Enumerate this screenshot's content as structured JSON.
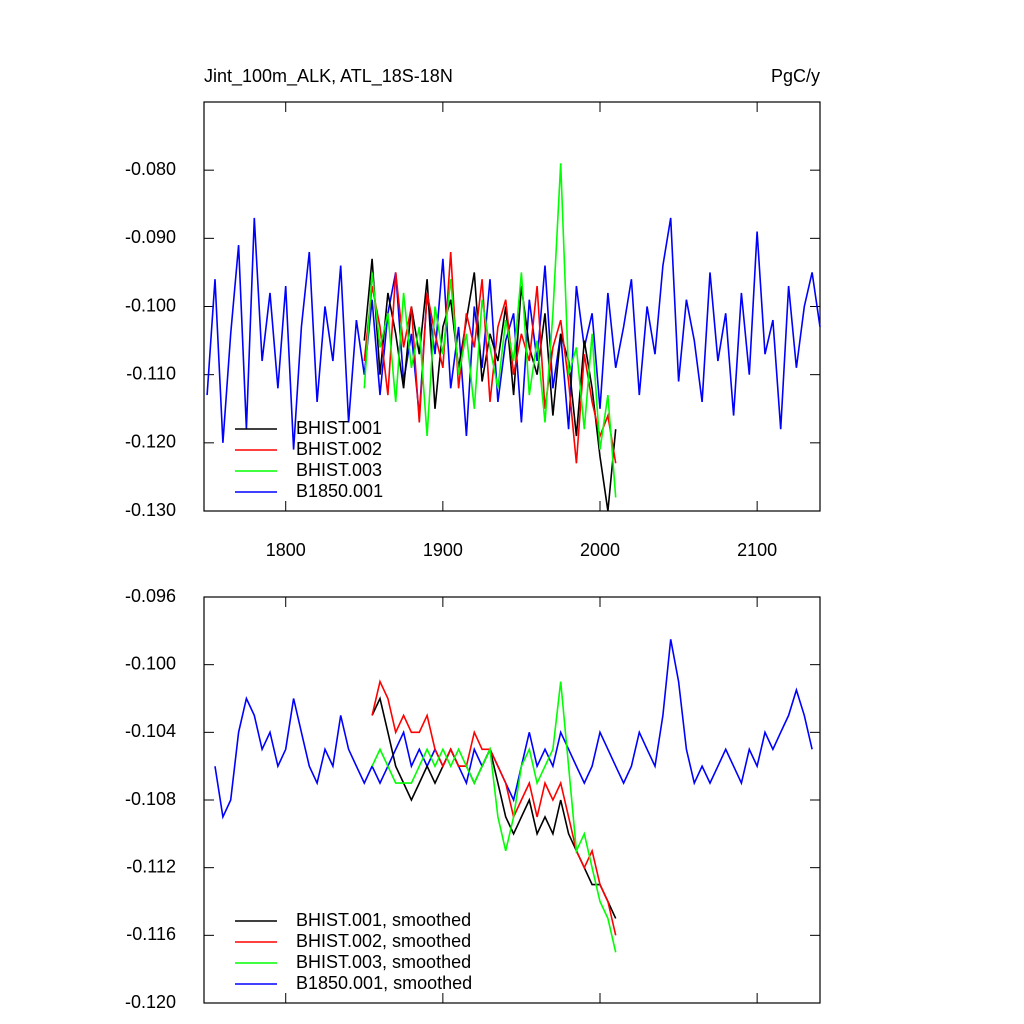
{
  "chart_data": [
    {
      "type": "line",
      "title": "Jint_100m_ALK, ATL_18S-18N",
      "units": "PgC/y",
      "xlim": [
        1748,
        2140
      ],
      "xticks": [
        1800,
        1900,
        2000,
        2100
      ],
      "ylim": [
        -0.13,
        -0.07
      ],
      "yticks": [
        {
          "value": -0.13,
          "label": "-0.130"
        },
        {
          "value": -0.12,
          "label": "-0.120"
        },
        {
          "value": -0.11,
          "label": "-0.110"
        },
        {
          "value": -0.1,
          "label": "-0.100"
        },
        {
          "value": -0.09,
          "label": "-0.090"
        },
        {
          "value": -0.08,
          "label": "-0.080"
        }
      ],
      "show_xtick_labels": true,
      "legend": "lower left",
      "series": [
        {
          "name": "B1850.001",
          "color": "#0000ff",
          "x": [
            1750,
            1755,
            1760,
            1765,
            1770,
            1775,
            1780,
            1785,
            1790,
            1795,
            1800,
            1805,
            1810,
            1815,
            1820,
            1825,
            1830,
            1835,
            1840,
            1845,
            1850,
            1855,
            1860,
            1865,
            1870,
            1875,
            1880,
            1885,
            1890,
            1895,
            1900,
            1905,
            1910,
            1915,
            1920,
            1925,
            1930,
            1935,
            1940,
            1945,
            1950,
            1955,
            1960,
            1965,
            1970,
            1975,
            1980,
            1985,
            1990,
            1995,
            2000,
            2005,
            2010,
            2015,
            2020,
            2025,
            2030,
            2035,
            2040,
            2045,
            2050,
            2055,
            2060,
            2065,
            2070,
            2075,
            2080,
            2085,
            2090,
            2095,
            2100,
            2105,
            2110,
            2115,
            2120,
            2125,
            2130,
            2135,
            2140
          ],
          "values": [
            -0.113,
            -0.096,
            -0.12,
            -0.104,
            -0.091,
            -0.118,
            -0.087,
            -0.108,
            -0.098,
            -0.112,
            -0.097,
            -0.121,
            -0.103,
            -0.092,
            -0.114,
            -0.1,
            -0.108,
            -0.094,
            -0.117,
            -0.102,
            -0.11,
            -0.099,
            -0.113,
            -0.101,
            -0.095,
            -0.111,
            -0.104,
            -0.116,
            -0.098,
            -0.107,
            -0.093,
            -0.112,
            -0.103,
            -0.119,
            -0.1,
            -0.109,
            -0.096,
            -0.114,
            -0.105,
            -0.101,
            -0.117,
            -0.099,
            -0.108,
            -0.094,
            -0.112,
            -0.104,
            -0.118,
            -0.097,
            -0.106,
            -0.101,
            -0.115,
            -0.098,
            -0.109,
            -0.103,
            -0.096,
            -0.113,
            -0.1,
            -0.107,
            -0.094,
            -0.087,
            -0.111,
            -0.099,
            -0.105,
            -0.114,
            -0.095,
            -0.108,
            -0.101,
            -0.116,
            -0.098,
            -0.11,
            -0.089,
            -0.107,
            -0.102,
            -0.118,
            -0.097,
            -0.109,
            -0.1,
            -0.095,
            -0.103
          ]
        },
        {
          "name": "BHIST.001",
          "color": "#000000",
          "x": [
            1850,
            1855,
            1860,
            1865,
            1870,
            1875,
            1880,
            1885,
            1890,
            1895,
            1900,
            1905,
            1910,
            1915,
            1920,
            1925,
            1930,
            1935,
            1940,
            1945,
            1950,
            1955,
            1960,
            1965,
            1970,
            1975,
            1980,
            1985,
            1990,
            1995,
            2000,
            2005,
            2010
          ],
          "values": [
            -0.105,
            -0.093,
            -0.11,
            -0.098,
            -0.104,
            -0.112,
            -0.1,
            -0.107,
            -0.096,
            -0.115,
            -0.103,
            -0.099,
            -0.109,
            -0.102,
            -0.095,
            -0.111,
            -0.104,
            -0.108,
            -0.1,
            -0.113,
            -0.097,
            -0.106,
            -0.11,
            -0.101,
            -0.116,
            -0.104,
            -0.108,
            -0.119,
            -0.105,
            -0.112,
            -0.122,
            -0.13,
            -0.118
          ]
        },
        {
          "name": "BHIST.002",
          "color": "#ff0000",
          "x": [
            1850,
            1855,
            1860,
            1865,
            1870,
            1875,
            1880,
            1885,
            1890,
            1895,
            1900,
            1905,
            1910,
            1915,
            1920,
            1925,
            1930,
            1935,
            1940,
            1945,
            1950,
            1955,
            1960,
            1965,
            1970,
            1975,
            1980,
            1985,
            1990,
            1995,
            2000,
            2005,
            2010
          ],
          "values": [
            -0.108,
            -0.097,
            -0.103,
            -0.113,
            -0.095,
            -0.106,
            -0.1,
            -0.117,
            -0.098,
            -0.104,
            -0.109,
            -0.092,
            -0.112,
            -0.101,
            -0.106,
            -0.096,
            -0.114,
            -0.103,
            -0.099,
            -0.11,
            -0.104,
            -0.108,
            -0.097,
            -0.115,
            -0.106,
            -0.102,
            -0.111,
            -0.123,
            -0.107,
            -0.114,
            -0.119,
            -0.116,
            -0.123
          ]
        },
        {
          "name": "BHIST.003",
          "color": "#00ff00",
          "x": [
            1850,
            1855,
            1860,
            1865,
            1870,
            1875,
            1880,
            1885,
            1890,
            1895,
            1900,
            1905,
            1910,
            1915,
            1920,
            1925,
            1930,
            1935,
            1940,
            1945,
            1950,
            1955,
            1960,
            1965,
            1970,
            1975,
            1980,
            1985,
            1990,
            1995,
            2000,
            2005,
            2010
          ],
          "values": [
            -0.112,
            -0.095,
            -0.106,
            -0.101,
            -0.114,
            -0.098,
            -0.109,
            -0.103,
            -0.119,
            -0.1,
            -0.107,
            -0.096,
            -0.11,
            -0.104,
            -0.115,
            -0.099,
            -0.106,
            -0.112,
            -0.102,
            -0.108,
            -0.095,
            -0.113,
            -0.105,
            -0.117,
            -0.101,
            -0.079,
            -0.11,
            -0.106,
            -0.118,
            -0.104,
            -0.121,
            -0.113,
            -0.128
          ]
        }
      ],
      "legend_order": [
        "BHIST.001",
        "BHIST.002",
        "BHIST.003",
        "B1850.001"
      ]
    },
    {
      "type": "line",
      "xlim": [
        1748,
        2140
      ],
      "xticks": [
        1800,
        1900,
        2000,
        2100
      ],
      "ylim": [
        -0.12,
        -0.096
      ],
      "yticks": [
        {
          "value": -0.12,
          "label": "-0.120"
        },
        {
          "value": -0.116,
          "label": "-0.116"
        },
        {
          "value": -0.112,
          "label": "-0.112"
        },
        {
          "value": -0.108,
          "label": "-0.108"
        },
        {
          "value": -0.104,
          "label": "-0.104"
        },
        {
          "value": -0.1,
          "label": "-0.100"
        },
        {
          "value": -0.096,
          "label": "-0.096"
        }
      ],
      "show_xtick_labels": false,
      "legend": "lower left",
      "series": [
        {
          "name": "B1850.001, smoothed",
          "color": "#0000ff",
          "x": [
            1755,
            1760,
            1765,
            1770,
            1775,
            1780,
            1785,
            1790,
            1795,
            1800,
            1805,
            1810,
            1815,
            1820,
            1825,
            1830,
            1835,
            1840,
            1845,
            1850,
            1855,
            1860,
            1865,
            1870,
            1875,
            1880,
            1885,
            1890,
            1895,
            1900,
            1905,
            1910,
            1915,
            1920,
            1925,
            1930,
            1935,
            1940,
            1945,
            1950,
            1955,
            1960,
            1965,
            1970,
            1975,
            1980,
            1985,
            1990,
            1995,
            2000,
            2005,
            2010,
            2015,
            2020,
            2025,
            2030,
            2035,
            2040,
            2045,
            2050,
            2055,
            2060,
            2065,
            2070,
            2075,
            2080,
            2085,
            2090,
            2095,
            2100,
            2105,
            2110,
            2115,
            2120,
            2125,
            2130,
            2135
          ],
          "values": [
            -0.106,
            -0.109,
            -0.108,
            -0.104,
            -0.102,
            -0.103,
            -0.105,
            -0.104,
            -0.106,
            -0.105,
            -0.102,
            -0.104,
            -0.106,
            -0.107,
            -0.105,
            -0.106,
            -0.103,
            -0.105,
            -0.106,
            -0.107,
            -0.106,
            -0.107,
            -0.106,
            -0.105,
            -0.104,
            -0.106,
            -0.105,
            -0.106,
            -0.105,
            -0.106,
            -0.105,
            -0.106,
            -0.107,
            -0.105,
            -0.106,
            -0.105,
            -0.106,
            -0.107,
            -0.108,
            -0.106,
            -0.104,
            -0.106,
            -0.105,
            -0.106,
            -0.104,
            -0.105,
            -0.106,
            -0.107,
            -0.106,
            -0.104,
            -0.105,
            -0.106,
            -0.107,
            -0.106,
            -0.104,
            -0.105,
            -0.106,
            -0.103,
            -0.0985,
            -0.101,
            -0.105,
            -0.107,
            -0.106,
            -0.107,
            -0.106,
            -0.105,
            -0.106,
            -0.107,
            -0.105,
            -0.106,
            -0.104,
            -0.105,
            -0.104,
            -0.103,
            -0.1015,
            -0.103,
            -0.105
          ]
        },
        {
          "name": "BHIST.001, smoothed",
          "color": "#000000",
          "x": [
            1855,
            1860,
            1865,
            1870,
            1875,
            1880,
            1885,
            1890,
            1895,
            1900,
            1905,
            1910,
            1915,
            1920,
            1925,
            1930,
            1935,
            1940,
            1945,
            1950,
            1955,
            1960,
            1965,
            1970,
            1975,
            1980,
            1985,
            1990,
            1995,
            2000,
            2005,
            2010
          ],
          "values": [
            -0.103,
            -0.102,
            -0.104,
            -0.106,
            -0.107,
            -0.108,
            -0.107,
            -0.106,
            -0.107,
            -0.106,
            -0.105,
            -0.106,
            -0.106,
            -0.107,
            -0.106,
            -0.105,
            -0.107,
            -0.109,
            -0.11,
            -0.109,
            -0.108,
            -0.11,
            -0.109,
            -0.11,
            -0.108,
            -0.11,
            -0.111,
            -0.112,
            -0.113,
            -0.113,
            -0.114,
            -0.115
          ]
        },
        {
          "name": "BHIST.002, smoothed",
          "color": "#ff0000",
          "x": [
            1855,
            1860,
            1865,
            1870,
            1875,
            1880,
            1885,
            1890,
            1895,
            1900,
            1905,
            1910,
            1915,
            1920,
            1925,
            1930,
            1935,
            1940,
            1945,
            1950,
            1955,
            1960,
            1965,
            1970,
            1975,
            1980,
            1985,
            1990,
            1995,
            2000,
            2005,
            2010
          ],
          "values": [
            -0.103,
            -0.101,
            -0.102,
            -0.104,
            -0.103,
            -0.104,
            -0.104,
            -0.103,
            -0.105,
            -0.106,
            -0.105,
            -0.106,
            -0.106,
            -0.104,
            -0.105,
            -0.105,
            -0.106,
            -0.107,
            -0.109,
            -0.108,
            -0.107,
            -0.109,
            -0.107,
            -0.108,
            -0.107,
            -0.109,
            -0.111,
            -0.112,
            -0.111,
            -0.113,
            -0.114,
            -0.116
          ]
        },
        {
          "name": "BHIST.003, smoothed",
          "color": "#00ff00",
          "x": [
            1855,
            1860,
            1865,
            1870,
            1875,
            1880,
            1885,
            1890,
            1895,
            1900,
            1905,
            1910,
            1915,
            1920,
            1925,
            1930,
            1935,
            1940,
            1945,
            1950,
            1955,
            1960,
            1965,
            1970,
            1975,
            1980,
            1985,
            1990,
            1995,
            2000,
            2005,
            2010
          ],
          "values": [
            -0.106,
            -0.105,
            -0.106,
            -0.107,
            -0.107,
            -0.107,
            -0.106,
            -0.105,
            -0.106,
            -0.105,
            -0.106,
            -0.105,
            -0.106,
            -0.107,
            -0.106,
            -0.105,
            -0.109,
            -0.111,
            -0.109,
            -0.106,
            -0.105,
            -0.107,
            -0.106,
            -0.105,
            -0.101,
            -0.106,
            -0.111,
            -0.11,
            -0.112,
            -0.114,
            -0.115,
            -0.117
          ]
        }
      ],
      "legend_order": [
        "BHIST.001, smoothed",
        "BHIST.002, smoothed",
        "BHIST.003, smoothed",
        "B1850.001, smoothed"
      ]
    }
  ]
}
